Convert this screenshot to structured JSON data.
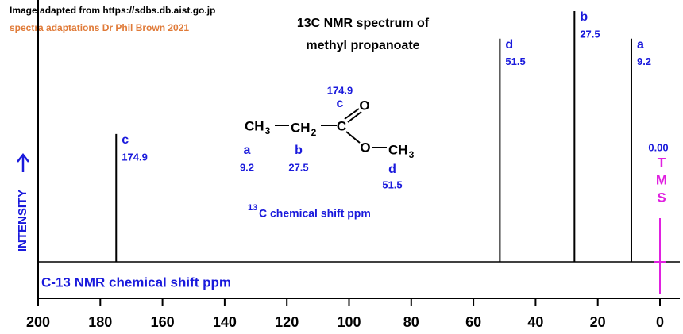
{
  "chart_data": {
    "type": "spectrum",
    "source": "Image adapted from https://sdbs.db.aist.go.jp",
    "credit": "spectra adaptations Dr Phil Brown 2021",
    "title": [
      "13C NMR spectrum of",
      "methyl propanoate"
    ],
    "x_label": "C-13 NMR chemical shift ppm",
    "y_label": "INTENSITY",
    "x": [
      174.9,
      51.5,
      27.5,
      9.2
    ],
    "peak_letters": [
      "c",
      "d",
      "b",
      "a"
    ],
    "values": [
      51,
      89,
      100,
      89
    ],
    "color": "#000000",
    "label_color": "#1a1adc",
    "xlim": [
      200,
      -6
    ],
    "ylim": [
      0,
      100
    ],
    "xticks": [
      200,
      180,
      160,
      140,
      120,
      100,
      80,
      60,
      40,
      20,
      0
    ],
    "tms": {
      "shift": {
        "value": 0,
        "label": "0.00"
      },
      "letters": [
        "T",
        "M",
        "S"
      ],
      "color": "#e020e0"
    },
    "structure": {
      "caption_sup": "13",
      "caption": "C  chemical shift ppm",
      "atoms": [
        {
          "text": "CH",
          "sub": "3"
        },
        {
          "text": "CH",
          "sub": "2"
        },
        {
          "text": "C"
        },
        {
          "text": "O"
        },
        {
          "text": "O"
        },
        {
          "text": "CH",
          "sub": "3"
        }
      ],
      "labels": [
        {
          "letter": "a",
          "shift": "9.2"
        },
        {
          "letter": "b",
          "shift": "27.5"
        },
        {
          "letter": "c",
          "shift": "174.9"
        },
        {
          "letter": "d",
          "shift": "51.5"
        }
      ]
    }
  }
}
